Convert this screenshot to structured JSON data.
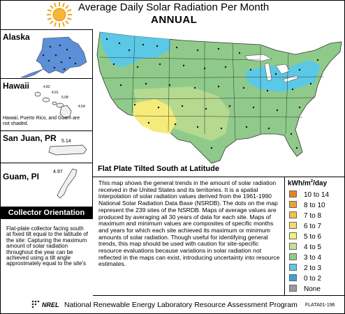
{
  "header": {
    "title": "Average Daily Solar Radiation Per Month",
    "subtitle": "ANNUAL",
    "sun_icon": "sun-icon",
    "sun_color": "#f5a623"
  },
  "insets": {
    "alaska": {
      "label": "Alaska"
    },
    "hawaii": {
      "label": "Hawaii",
      "values": [
        "4.82",
        "4.91",
        "5.08",
        "4.54"
      ],
      "note": "Hawaii, Puerto Rico, and Guam are not shaded."
    },
    "san_juan": {
      "label": "San Juan, PR",
      "value": "5.14"
    },
    "guam": {
      "label": "Guam, PI",
      "value": "4.97"
    }
  },
  "collector": {
    "title": "Collector Orientation",
    "text": "Flat-plate collector facing south at fixed tilt equal to the latitude of the site: Capturing the maximum amount of solar radiation throughout the year can be achieved using a tilt angle approximately equal to the site's"
  },
  "map": {
    "heading": "Flat Plate Tilted South at Latitude",
    "description": "This map shows the general trends in the amount of solar radiation received in the United States and its territories. It is a spatial interpolation of solar radiation values derived from the 1961-1990 National Solar Radiation Data Base (NSRDB). The dots on the map represent the 239 sites of the NSRDB. Maps of average values are produced by averaging all 30 years of data for each site. Maps of maximum and minimum values are composites of specific months and years for which each site achieved its maximum or minimum amounts of solar radiation. Though useful for identifying general trends, this map should be used with caution for site-specific resource evaluations because variations in solar radiation not reflected in the maps can exist, introducing uncertainty into resource estimates.",
    "region_colors": {
      "northwest": "#5bc8e6",
      "greatlakes": "#5bc8e6",
      "main": "#8fca8a",
      "plains": "#b5d98f",
      "southwest": "#f5eb7a",
      "desert": "#f7f089"
    }
  },
  "legend": {
    "title_prefix": "kWh/m",
    "title_sup": "2",
    "title_suffix": "/day",
    "items": [
      {
        "label": "10 to 14",
        "color": "#e8821e"
      },
      {
        "label": "8 to 10",
        "color": "#f0a030"
      },
      {
        "label": "7 to 8",
        "color": "#f5c14a"
      },
      {
        "label": "6 to 7",
        "color": "#f7dc6a"
      },
      {
        "label": "5 to 6",
        "color": "#f5f07a"
      },
      {
        "label": "4 to 5",
        "color": "#c5df95"
      },
      {
        "label": "3 to 4",
        "color": "#8fca8a"
      },
      {
        "label": "2 to 3",
        "color": "#5bc8e6"
      },
      {
        "label": "0 to 2",
        "color": "#3aa0d8"
      },
      {
        "label": "None",
        "color": "#9a9a9a"
      }
    ]
  },
  "footer": {
    "logo": "NREL",
    "text": "National Renewable Energy Laboratory Resource Assessment Program",
    "code": "FLATA01-196"
  }
}
